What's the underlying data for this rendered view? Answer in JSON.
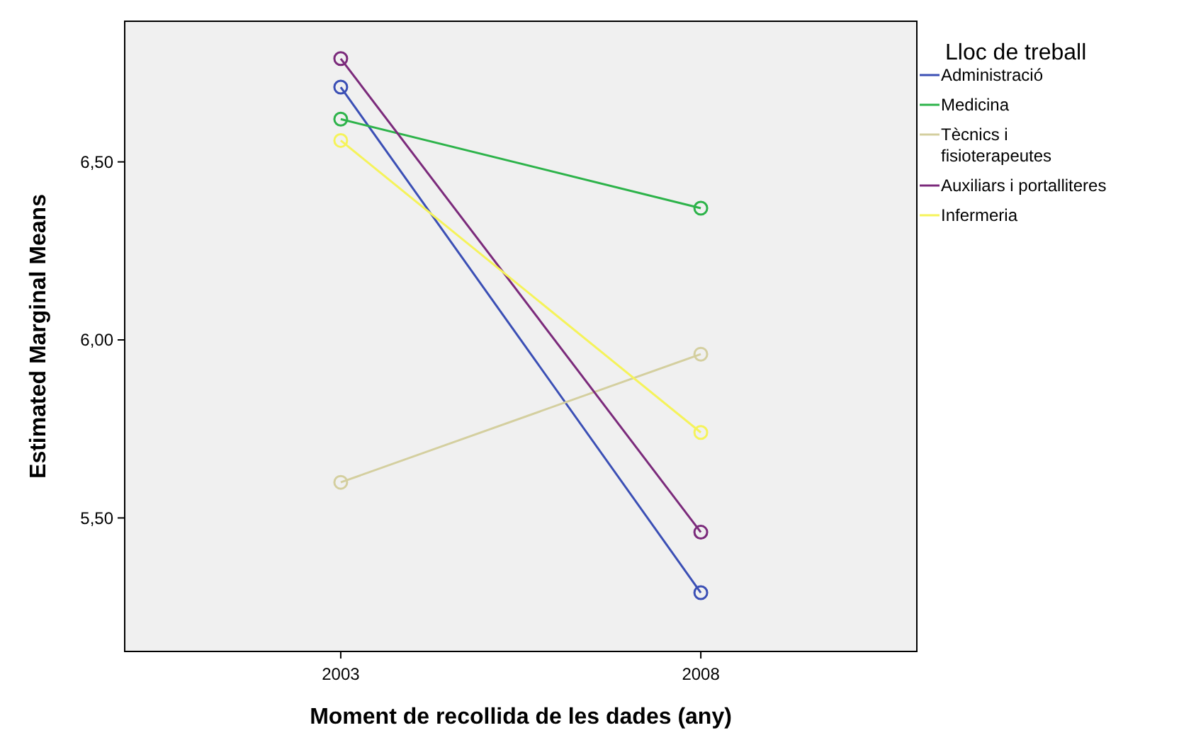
{
  "chart_data": {
    "type": "line",
    "xlabel": "Moment de recollida de les dades (any)",
    "ylabel": "Estimated Marginal Means",
    "legend_title": "Lloc de treball",
    "x": [
      2003,
      2008
    ],
    "xlim": [
      2000,
      2011
    ],
    "xticks": [
      2003,
      2008
    ],
    "series": [
      {
        "name": "Administració",
        "color": "#3b4fb5",
        "values": [
          6.71,
          5.29
        ]
      },
      {
        "name": "Medicina",
        "color": "#2db34a",
        "values": [
          6.62,
          6.37
        ]
      },
      {
        "name": "Tècnics i fisioterapeutes",
        "color": "#d4cf9f",
        "values": [
          5.6,
          5.96
        ]
      },
      {
        "name": "Auxiliars i portalliteres",
        "color": "#7b2a7b",
        "values": [
          6.79,
          5.46
        ]
      },
      {
        "name": "Infermeria",
        "color": "#f5f35a",
        "values": [
          6.56,
          5.74
        ]
      }
    ],
    "ylim": [
      5.125,
      6.895
    ],
    "yticks": [
      {
        "value": 5.5,
        "label": "5,50"
      },
      {
        "value": 6,
        "label": "6,00"
      },
      {
        "value": 6.5,
        "label": "6,50"
      }
    ],
    "grid": false,
    "legend": "right",
    "marker": "circle",
    "line_style": "solid"
  }
}
